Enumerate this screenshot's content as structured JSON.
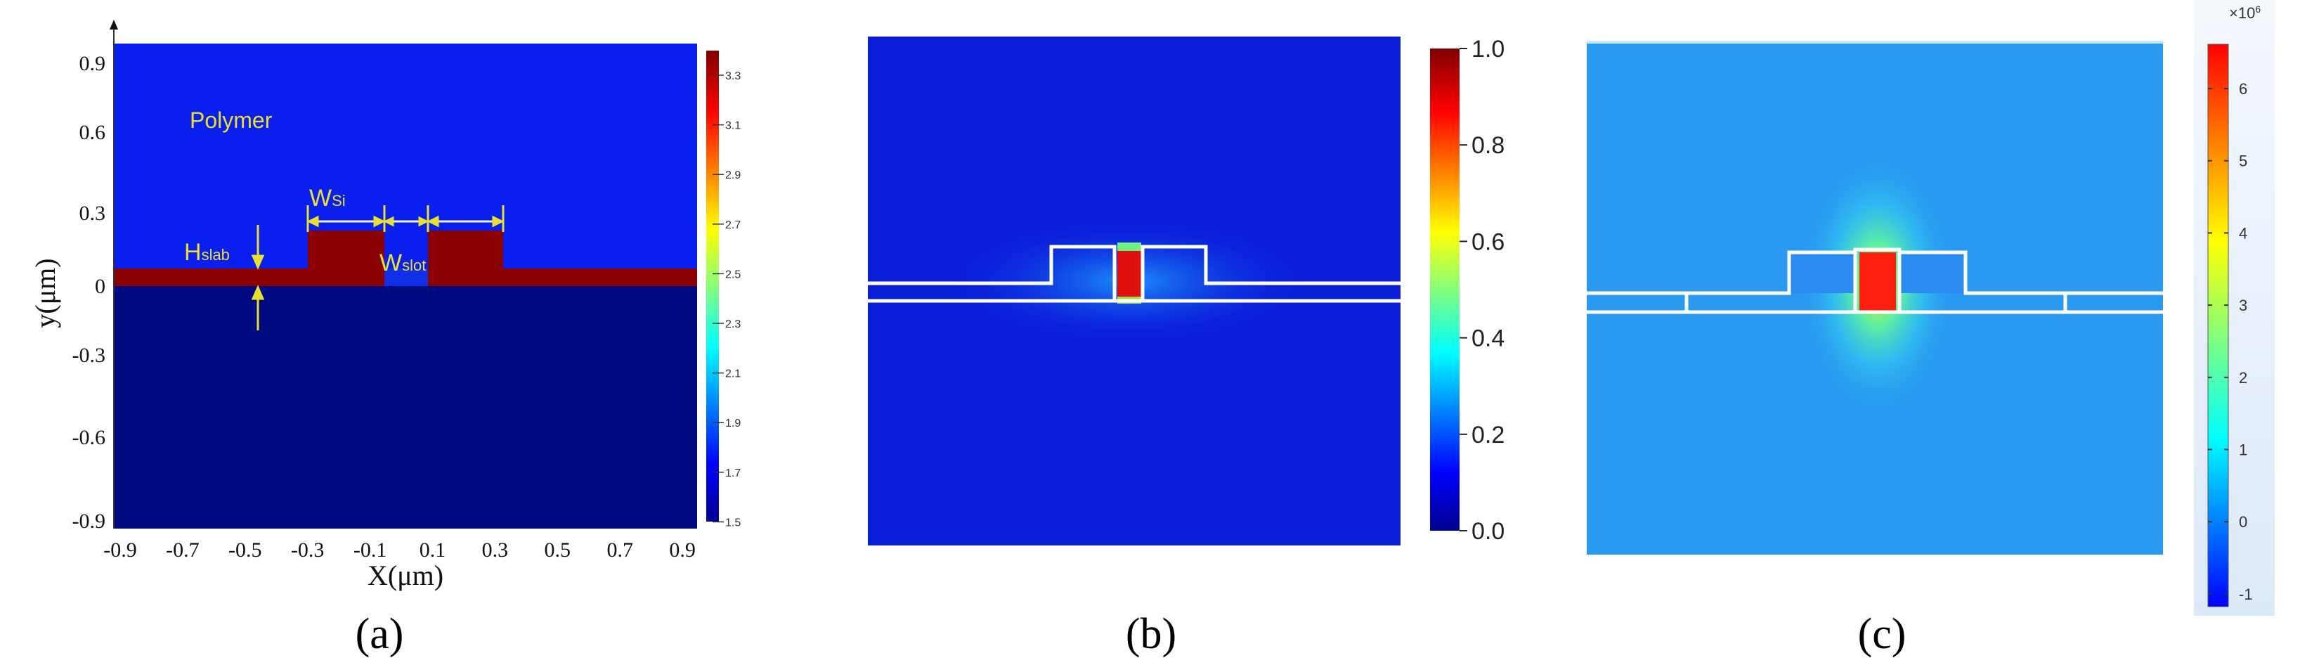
{
  "panels": {
    "a": {
      "caption": "(a)",
      "xlabel": "X(μm)",
      "ylabel": "y(μm)",
      "xticks": [
        "-0.9",
        "-0.7",
        "-0.5",
        "-0.3",
        "-0.1",
        "0.1",
        "0.3",
        "0.5",
        "0.7",
        "0.9"
      ],
      "yticks": [
        "0.9",
        "0.6",
        "0.3",
        "0",
        "-0.3",
        "-0.6",
        "-0.9"
      ],
      "colorbar_ticks": [
        "3.3",
        "3.1",
        "2.9",
        "2.7",
        "2.5",
        "2.3",
        "2.1",
        "1.9",
        "1.7",
        "1.5"
      ],
      "annotations": {
        "polymer": "Polymer",
        "w_si": "W",
        "w_si_sub": "Si",
        "w_slot": "W",
        "w_slot_sub": "slot",
        "h_slab": "H",
        "h_slab_sub": "slab"
      },
      "colors": {
        "polymer": "#0a1ef0",
        "substrate": "#000a80",
        "silicon": "#8b0000",
        "annotation": "#e8e030"
      }
    },
    "b": {
      "caption": "(b)",
      "colorbar_ticks": [
        "1.0",
        "0.8",
        "0.6",
        "0.4",
        "0.2",
        "0.0"
      ],
      "colormap": "jet"
    },
    "c": {
      "caption": "(c)",
      "colorbar_exponent": "×10",
      "colorbar_exponent_power": "6",
      "colorbar_ticks": [
        "6",
        "5",
        "4",
        "3",
        "2",
        "1",
        "0",
        "-1"
      ],
      "colormap": "jet"
    }
  }
}
